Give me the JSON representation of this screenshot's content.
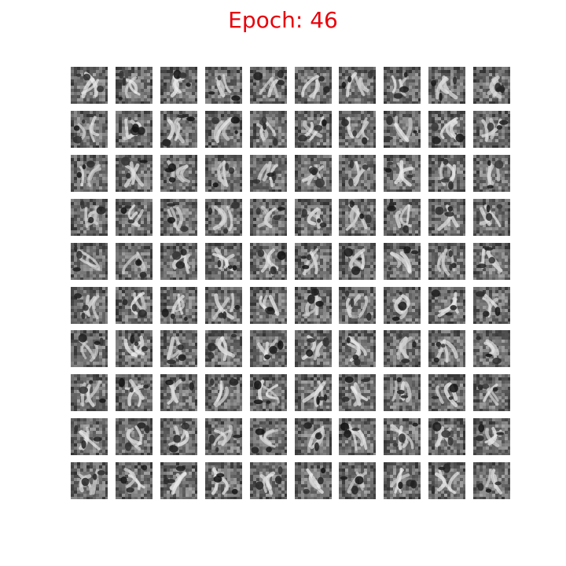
{
  "figure": {
    "title": "Epoch: 46",
    "title_color": "#e8000b"
  },
  "samples": {
    "rows": 10,
    "cols": 10,
    "style": "grayscale generated digit-like samples",
    "background_gray": "#8a8a8a"
  }
}
